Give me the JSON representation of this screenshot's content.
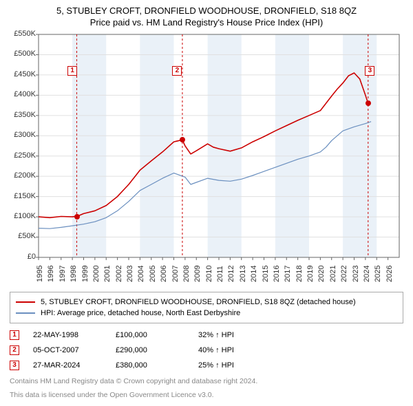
{
  "title_line1": "5, STUBLEY CROFT, DRONFIELD WOODHOUSE, DRONFIELD, S18 8QZ",
  "title_line2": "Price paid vs. HM Land Registry's House Price Index (HPI)",
  "chart": {
    "type": "line",
    "x_domain": [
      1995,
      2027
    ],
    "y_domain": [
      0,
      550000
    ],
    "y_ticks": [
      0,
      50000,
      100000,
      150000,
      200000,
      250000,
      300000,
      350000,
      400000,
      450000,
      500000,
      550000
    ],
    "y_tick_labels": [
      "£0",
      "£50K",
      "£100K",
      "£150K",
      "£200K",
      "£250K",
      "£300K",
      "£350K",
      "£400K",
      "£450K",
      "£500K",
      "£550K"
    ],
    "x_ticks": [
      1995,
      1996,
      1997,
      1998,
      1999,
      2000,
      2001,
      2002,
      2003,
      2004,
      2005,
      2006,
      2007,
      2008,
      2009,
      2010,
      2011,
      2012,
      2013,
      2014,
      2015,
      2016,
      2017,
      2018,
      2019,
      2020,
      2021,
      2022,
      2023,
      2024,
      2025,
      2026
    ],
    "background_color": "#ffffff",
    "axis_color": "#666666",
    "grid_color": "#e0e0e0",
    "band_color": "#eaf1f8",
    "label_fontsize": 11,
    "series": [
      {
        "id": "property",
        "label": "5, STUBLEY CROFT, DRONFIELD WOODHOUSE, DRONFIELD, S18 8QZ (detached house)",
        "color": "#cc0000",
        "width": 1.6,
        "data": [
          [
            1995,
            100000
          ],
          [
            1996,
            98000
          ],
          [
            1997,
            101000
          ],
          [
            1998,
            100000
          ],
          [
            1998.5,
            102000
          ],
          [
            1999,
            108000
          ],
          [
            2000,
            115000
          ],
          [
            2001,
            128000
          ],
          [
            2002,
            150000
          ],
          [
            2003,
            180000
          ],
          [
            2004,
            215000
          ],
          [
            2005,
            238000
          ],
          [
            2006,
            260000
          ],
          [
            2007,
            285000
          ],
          [
            2007.76,
            290000
          ],
          [
            2008,
            275000
          ],
          [
            2008.5,
            255000
          ],
          [
            2009,
            263000
          ],
          [
            2010,
            280000
          ],
          [
            2010.5,
            272000
          ],
          [
            2011,
            268000
          ],
          [
            2012,
            262000
          ],
          [
            2013,
            270000
          ],
          [
            2014,
            285000
          ],
          [
            2015,
            298000
          ],
          [
            2016,
            312000
          ],
          [
            2017,
            325000
          ],
          [
            2018,
            338000
          ],
          [
            2019,
            350000
          ],
          [
            2020,
            362000
          ],
          [
            2020.5,
            380000
          ],
          [
            2021,
            398000
          ],
          [
            2021.5,
            415000
          ],
          [
            2022,
            430000
          ],
          [
            2022.5,
            448000
          ],
          [
            2023,
            455000
          ],
          [
            2023.5,
            440000
          ],
          [
            2024,
            400000
          ],
          [
            2024.24,
            380000
          ]
        ]
      },
      {
        "id": "hpi",
        "label": "HPI: Average price, detached house, North East Derbyshire",
        "color": "#6a8fbf",
        "width": 1.2,
        "data": [
          [
            1995,
            72000
          ],
          [
            1996,
            71000
          ],
          [
            1997,
            74000
          ],
          [
            1998,
            78000
          ],
          [
            1999,
            82000
          ],
          [
            2000,
            88000
          ],
          [
            2001,
            98000
          ],
          [
            2002,
            115000
          ],
          [
            2003,
            138000
          ],
          [
            2004,
            165000
          ],
          [
            2005,
            180000
          ],
          [
            2006,
            195000
          ],
          [
            2007,
            208000
          ],
          [
            2008,
            198000
          ],
          [
            2008.5,
            180000
          ],
          [
            2009,
            185000
          ],
          [
            2010,
            195000
          ],
          [
            2011,
            190000
          ],
          [
            2012,
            188000
          ],
          [
            2013,
            193000
          ],
          [
            2014,
            202000
          ],
          [
            2015,
            212000
          ],
          [
            2016,
            222000
          ],
          [
            2017,
            232000
          ],
          [
            2018,
            242000
          ],
          [
            2019,
            250000
          ],
          [
            2020,
            260000
          ],
          [
            2020.5,
            272000
          ],
          [
            2021,
            288000
          ],
          [
            2022,
            312000
          ],
          [
            2023,
            322000
          ],
          [
            2024,
            330000
          ],
          [
            2024.5,
            335000
          ]
        ]
      }
    ],
    "bands": [
      [
        1998,
        2001
      ],
      [
        2004,
        2007
      ],
      [
        2010,
        2013
      ],
      [
        2016,
        2019
      ],
      [
        2022,
        2025
      ]
    ],
    "markers": [
      {
        "n": "1",
        "date_x": 1998.39,
        "color": "#cc0000",
        "label_x": 1998.0,
        "label_y": 460000,
        "dot_y": 100000
      },
      {
        "n": "2",
        "date_x": 2007.76,
        "color": "#cc0000",
        "label_x": 2007.3,
        "label_y": 460000,
        "dot_y": 290000
      },
      {
        "n": "3",
        "date_x": 2024.24,
        "color": "#cc0000",
        "label_x": 2024.4,
        "label_y": 460000,
        "dot_y": 380000
      }
    ]
  },
  "legend": [
    {
      "color": "#cc0000",
      "text": "5, STUBLEY CROFT, DRONFIELD WOODHOUSE, DRONFIELD, S18 8QZ (detached house)"
    },
    {
      "color": "#6a8fbf",
      "text": "HPI: Average price, detached house, North East Derbyshire"
    }
  ],
  "events": [
    {
      "n": "1",
      "color": "#cc0000",
      "date": "22-MAY-1998",
      "price": "£100,000",
      "delta": "32% ↑ HPI"
    },
    {
      "n": "2",
      "color": "#cc0000",
      "date": "05-OCT-2007",
      "price": "£290,000",
      "delta": "40% ↑ HPI"
    },
    {
      "n": "3",
      "color": "#cc0000",
      "date": "27-MAR-2024",
      "price": "£380,000",
      "delta": "25% ↑ HPI"
    }
  ],
  "footnote1": "Contains HM Land Registry data © Crown copyright and database right 2024.",
  "footnote2": "This data is licensed under the Open Government Licence v3.0."
}
